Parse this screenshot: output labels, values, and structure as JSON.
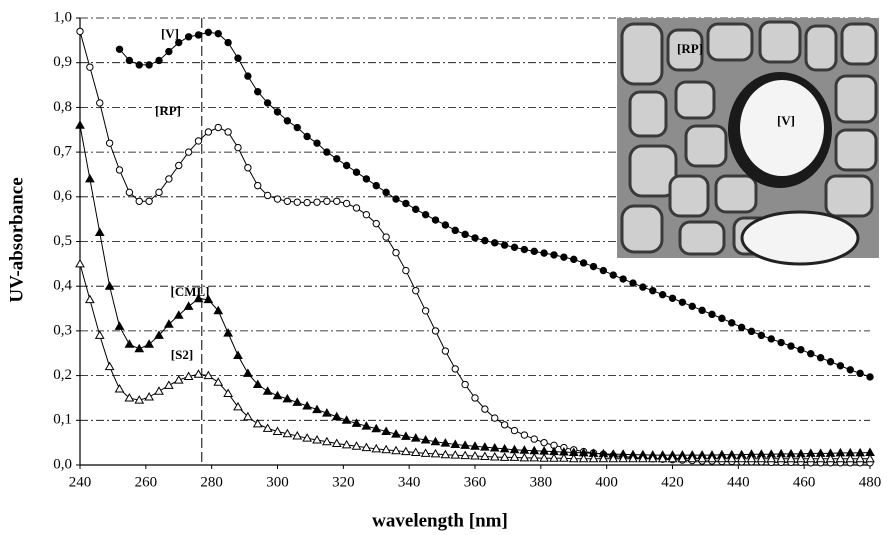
{
  "chart_data": {
    "type": "line",
    "xlabel": "wavelength [nm]",
    "ylabel": "UV-absorbance",
    "x": [
      240,
      243,
      246,
      249,
      252,
      255,
      258,
      261,
      264,
      267,
      270,
      273,
      276,
      279,
      282,
      285,
      288,
      291,
      294,
      297,
      300,
      303,
      306,
      309,
      312,
      315,
      318,
      321,
      324,
      327,
      330,
      333,
      336,
      339,
      342,
      345,
      348,
      351,
      354,
      357,
      360,
      363,
      366,
      369,
      372,
      375,
      378,
      381,
      384,
      387,
      390,
      393,
      396,
      399,
      402,
      405,
      408,
      411,
      414,
      417,
      420,
      423,
      426,
      429,
      432,
      435,
      438,
      441,
      444,
      447,
      450,
      453,
      456,
      459,
      462,
      465,
      468,
      471,
      474,
      477,
      480
    ],
    "series": [
      {
        "name": "[V]",
        "color": "#000000",
        "marker": "circle",
        "filled": true,
        "values": [
          null,
          null,
          null,
          null,
          0.93,
          0.905,
          0.895,
          0.895,
          0.905,
          0.925,
          0.945,
          0.958,
          0.962,
          0.968,
          0.965,
          0.945,
          0.91,
          0.87,
          0.835,
          0.81,
          0.79,
          0.77,
          0.755,
          0.735,
          0.72,
          0.7,
          0.685,
          0.67,
          0.655,
          0.64,
          0.625,
          0.61,
          0.595,
          0.585,
          0.572,
          0.56,
          0.548,
          0.537,
          0.525,
          0.516,
          0.508,
          0.502,
          0.497,
          0.492,
          0.487,
          0.482,
          0.478,
          0.474,
          0.47,
          0.465,
          0.46,
          0.452,
          0.444,
          0.435,
          0.425,
          0.416,
          0.407,
          0.398,
          0.39,
          0.381,
          0.373,
          0.364,
          0.355,
          0.346,
          0.337,
          0.328,
          0.318,
          0.308,
          0.299,
          0.29,
          0.282,
          0.274,
          0.266,
          0.258,
          0.249,
          0.24,
          0.231,
          0.222,
          0.213,
          0.205,
          0.197
        ]
      },
      {
        "name": "[RP]",
        "color": "#000000",
        "marker": "circle",
        "filled": false,
        "values": [
          0.97,
          0.89,
          0.81,
          0.72,
          0.66,
          0.61,
          0.59,
          0.59,
          0.61,
          0.64,
          0.67,
          0.7,
          0.725,
          0.745,
          0.755,
          0.745,
          0.71,
          0.665,
          0.625,
          0.603,
          0.595,
          0.59,
          0.588,
          0.587,
          0.588,
          0.59,
          0.59,
          0.585,
          0.575,
          0.56,
          0.54,
          0.51,
          0.475,
          0.435,
          0.39,
          0.345,
          0.3,
          0.255,
          0.215,
          0.18,
          0.15,
          0.125,
          0.105,
          0.09,
          0.077,
          0.067,
          0.058,
          0.05,
          0.044,
          0.039,
          0.034,
          0.03,
          0.027,
          0.024,
          0.021,
          0.019,
          0.017,
          0.015,
          0.014,
          0.013,
          0.012,
          0.011,
          0.01,
          0.009,
          0.009,
          0.008,
          0.008,
          0.007,
          0.007,
          0.007,
          0.006,
          0.006,
          0.006,
          0.006,
          0.005,
          0.005,
          0.005,
          0.005,
          0.005,
          0.005,
          0.005
        ]
      },
      {
        "name": "[CML]",
        "color": "#000000",
        "marker": "triangle",
        "filled": true,
        "values": [
          0.76,
          0.64,
          0.52,
          0.4,
          0.31,
          0.27,
          0.26,
          0.27,
          0.29,
          0.315,
          0.335,
          0.355,
          0.372,
          0.37,
          0.345,
          0.295,
          0.245,
          0.205,
          0.18,
          0.165,
          0.155,
          0.148,
          0.14,
          0.132,
          0.124,
          0.116,
          0.108,
          0.1,
          0.093,
          0.087,
          0.081,
          0.075,
          0.069,
          0.064,
          0.06,
          0.056,
          0.052,
          0.049,
          0.046,
          0.044,
          0.042,
          0.04,
          0.038,
          0.036,
          0.034,
          0.033,
          0.032,
          0.031,
          0.03,
          0.029,
          0.028,
          0.027,
          0.026,
          0.025,
          0.024,
          0.024,
          0.023,
          0.023,
          0.022,
          0.022,
          0.022,
          0.022,
          0.022,
          0.022,
          0.022,
          0.023,
          0.023,
          0.023,
          0.024,
          0.024,
          0.024,
          0.025,
          0.025,
          0.025,
          0.026,
          0.026,
          0.026,
          0.027,
          0.027,
          0.027,
          0.028
        ]
      },
      {
        "name": "[S2]",
        "color": "#000000",
        "marker": "triangle",
        "filled": false,
        "values": [
          0.45,
          0.37,
          0.29,
          0.22,
          0.17,
          0.15,
          0.145,
          0.152,
          0.165,
          0.178,
          0.19,
          0.198,
          0.203,
          0.2,
          0.185,
          0.16,
          0.13,
          0.108,
          0.092,
          0.082,
          0.075,
          0.07,
          0.065,
          0.06,
          0.056,
          0.052,
          0.048,
          0.045,
          0.042,
          0.039,
          0.036,
          0.034,
          0.032,
          0.03,
          0.028,
          0.026,
          0.025,
          0.023,
          0.022,
          0.021,
          0.02,
          0.019,
          0.018,
          0.017,
          0.017,
          0.016,
          0.016,
          0.015,
          0.015,
          0.015,
          0.014,
          0.014,
          0.014,
          0.014,
          0.014,
          0.014,
          0.014,
          0.014,
          0.014,
          0.014,
          0.014,
          0.014,
          0.014,
          0.014,
          0.014,
          0.014,
          0.014,
          0.014,
          0.014,
          0.014,
          0.014,
          0.014,
          0.014,
          0.014,
          0.014,
          0.014,
          0.014,
          0.014,
          0.014,
          0.014,
          0.014
        ]
      }
    ],
    "xlim": [
      240,
      480
    ],
    "xticks": [
      240,
      260,
      280,
      300,
      320,
      340,
      360,
      380,
      400,
      420,
      440,
      460,
      480
    ],
    "ylim": [
      0,
      1
    ],
    "yticks": [
      {
        "value": 0,
        "label": "0,0"
      },
      {
        "value": 0.1,
        "label": "0,1"
      },
      {
        "value": 0.2,
        "label": "0,2"
      },
      {
        "value": 0.3,
        "label": "0,3"
      },
      {
        "value": 0.4,
        "label": "0,4"
      },
      {
        "value": 0.5,
        "label": "0,5"
      },
      {
        "value": 0.6,
        "label": "0,6"
      },
      {
        "value": 0.7,
        "label": "0,7"
      },
      {
        "value": 0.8,
        "label": "0,8"
      },
      {
        "value": 0.9,
        "label": "0,9"
      },
      {
        "value": 1,
        "label": "1,0"
      }
    ],
    "grid": true,
    "reference_x": 277,
    "inset_labels": [
      "[RP]",
      "[V]"
    ]
  }
}
